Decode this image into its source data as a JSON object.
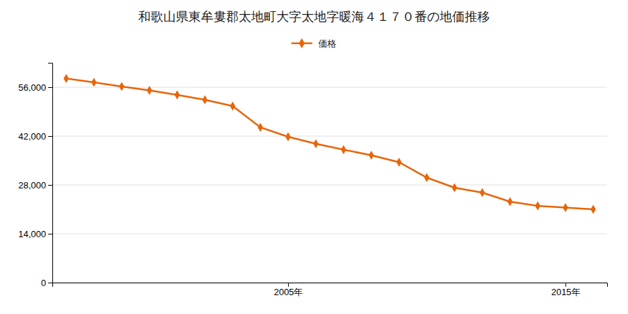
{
  "chart_data": {
    "type": "line",
    "title": "和歌山県東牟婁郡太地町大字太地字暖海４１７０番の地価推移",
    "x": [
      1997,
      1998,
      1999,
      2000,
      2001,
      2002,
      2003,
      2004,
      2005,
      2006,
      2007,
      2008,
      2009,
      2010,
      2011,
      2012,
      2013,
      2014,
      2015,
      2016
    ],
    "series": [
      {
        "name": "価格",
        "color": "#e8650a",
        "marker": "diamond",
        "values": [
          58500,
          57400,
          56200,
          55100,
          53800,
          52400,
          50600,
          44500,
          41800,
          39800,
          38100,
          36500,
          34500,
          30100,
          27200,
          25800,
          23200,
          22000,
          21500,
          21000
        ]
      }
    ],
    "xlim": [
      1996.5,
      2016.5
    ],
    "xticks": [
      {
        "value": 2005,
        "label": "2005年"
      },
      {
        "value": 2015,
        "label": "2015年"
      }
    ],
    "ylim": [
      0,
      63000
    ],
    "yticks": [
      0,
      {
        "value": 14000,
        "label": "14,000"
      },
      {
        "value": 28000,
        "label": "28,000"
      },
      {
        "value": 42000,
        "label": "42,000"
      },
      {
        "value": 56000,
        "label": "56,000"
      }
    ],
    "grid": true,
    "legend": "top"
  }
}
